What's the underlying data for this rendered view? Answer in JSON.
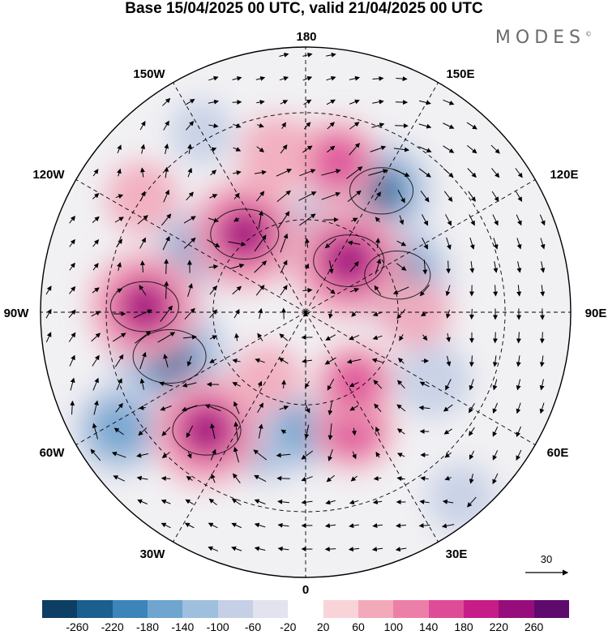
{
  "title": "Base 15/04/2025 00 UTC, valid 21/04/2025 00 UTC",
  "brand": "MODES",
  "brand_mark": "©",
  "longitude_labels": {
    "lon_180": "180",
    "lon_150e": "150E",
    "lon_120e": "120E",
    "lon_90e": "90E",
    "lon_60e": "60E",
    "lon_30e": "30E",
    "lon_0": "0",
    "lon_30w": "30W",
    "lon_60w": "60W",
    "lon_90w": "90W",
    "lon_120w": "120W",
    "lon_150w": "150W"
  },
  "reference_vector_label": "30",
  "colorbar": {
    "colors": [
      "#0d3e63",
      "#1b5f8f",
      "#3d84b8",
      "#6fa5cf",
      "#9fbfde",
      "#c5cfe6",
      "#e3e3f0",
      "#ffffff",
      "#f8d4d9",
      "#f2aabb",
      "#ec7fa8",
      "#de4c98",
      "#c71d89",
      "#980d7c",
      "#5f0a6d"
    ],
    "tick_labels": [
      "-260",
      "-220",
      "-180",
      "-140",
      "-100",
      "-60",
      "-20",
      "20",
      "60",
      "100",
      "140",
      "180",
      "220",
      "260"
    ]
  },
  "anomaly_centers": [
    {
      "sign": "neg",
      "strength": 0.55,
      "lon": 165,
      "lat": 62
    },
    {
      "sign": "neg",
      "strength": 0.75,
      "lon": 148,
      "lat": 45
    },
    {
      "sign": "neg",
      "strength": 0.8,
      "lon": 112,
      "lat": 58
    },
    {
      "sign": "neg",
      "strength": 0.45,
      "lon": -178,
      "lat": 66
    },
    {
      "sign": "neg",
      "strength": 0.5,
      "lon": -120,
      "lat": 50
    },
    {
      "sign": "neg",
      "strength": 0.95,
      "lon": -72,
      "lat": 45
    },
    {
      "sign": "neg",
      "strength": 0.6,
      "lon": -58,
      "lat": 25
    },
    {
      "sign": "neg",
      "strength": 0.55,
      "lon": -18,
      "lat": 48
    },
    {
      "sign": "neg",
      "strength": 0.45,
      "lon": -2,
      "lat": 52
    },
    {
      "sign": "neg",
      "strength": 0.4,
      "lon": 62,
      "lat": 45
    },
    {
      "sign": "neg",
      "strength": 0.3,
      "lon": 40,
      "lat": 20
    },
    {
      "sign": "neg",
      "strength": 0.25,
      "lon": -150,
      "lat": 28
    },
    {
      "sign": "pos",
      "strength": 0.85,
      "lon": -142,
      "lat": 58
    },
    {
      "sign": "pos",
      "strength": 0.85,
      "lon": -92,
      "lat": 40
    },
    {
      "sign": "pos",
      "strength": 0.85,
      "lon": -40,
      "lat": 42
    },
    {
      "sign": "pos",
      "strength": 0.9,
      "lon": 140,
      "lat": 68
    },
    {
      "sign": "pos",
      "strength": 0.5,
      "lon": 168,
      "lat": 42
    },
    {
      "sign": "pos",
      "strength": 0.4,
      "lon": -170,
      "lat": 40
    },
    {
      "sign": "pos",
      "strength": 0.5,
      "lon": 22,
      "lat": 50
    },
    {
      "sign": "pos",
      "strength": 0.45,
      "lon": 35,
      "lat": 62
    },
    {
      "sign": "pos",
      "strength": 0.35,
      "lon": 90,
      "lat": 55
    },
    {
      "sign": "pos",
      "strength": 0.3,
      "lon": -30,
      "lat": 65
    },
    {
      "sign": "pos",
      "strength": 0.35,
      "lon": -125,
      "lat": 30
    }
  ]
}
